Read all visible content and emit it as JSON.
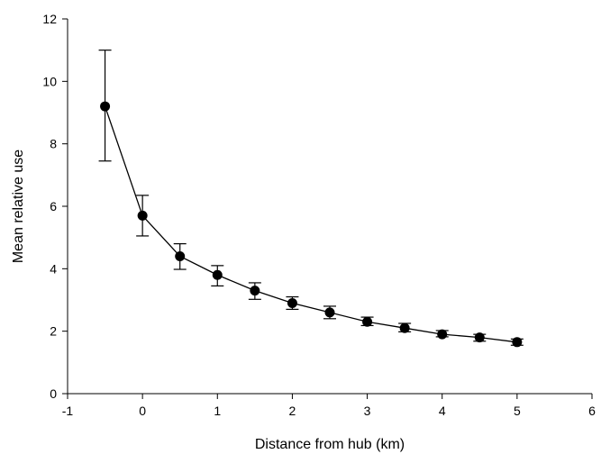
{
  "chart_data": {
    "type": "line",
    "title": "",
    "xlabel": "Distance from hub (km)",
    "ylabel": "Mean relative use",
    "xlim": [
      -1,
      6
    ],
    "ylim": [
      0,
      12
    ],
    "xticks": [
      -1,
      0,
      1,
      2,
      3,
      4,
      5,
      6
    ],
    "yticks": [
      0,
      2,
      4,
      6,
      8,
      10,
      12
    ],
    "grid": false,
    "series": [
      {
        "x": [
          -0.5,
          0,
          0.5,
          1,
          1.5,
          2,
          2.5,
          3,
          3.5,
          4,
          4.5,
          5
        ],
        "y": [
          9.2,
          5.7,
          4.4,
          3.8,
          3.3,
          2.9,
          2.6,
          2.3,
          2.1,
          1.9,
          1.8,
          1.65
        ],
        "error_upper": [
          11.0,
          6.35,
          4.8,
          4.1,
          3.55,
          3.1,
          2.8,
          2.45,
          2.25,
          2.02,
          1.9,
          1.75
        ],
        "error_lower": [
          7.45,
          5.05,
          3.98,
          3.45,
          3.02,
          2.7,
          2.4,
          2.18,
          1.98,
          1.82,
          1.68,
          1.55
        ]
      }
    ]
  }
}
